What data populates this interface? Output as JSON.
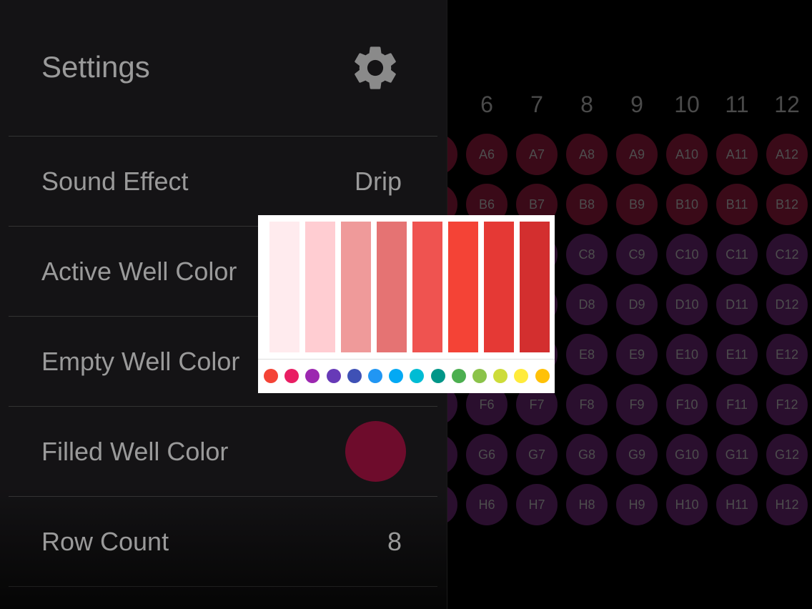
{
  "settings": {
    "title": "Settings",
    "gear_icon": "gear-icon",
    "rows": [
      {
        "label": "Sound Effect",
        "value": "Drip"
      },
      {
        "label": "Active Well Color"
      },
      {
        "label": "Empty Well Color"
      },
      {
        "label": "Filled Well Color",
        "color": "#6e0c2c"
      },
      {
        "label": "Row Count",
        "value": "8"
      }
    ]
  },
  "plate": {
    "columns": [
      "6",
      "7",
      "8",
      "9",
      "10",
      "11",
      "12"
    ],
    "rows": [
      "A",
      "B",
      "C",
      "D",
      "E",
      "F",
      "G",
      "H"
    ],
    "filled_color": "#3a0a18",
    "empty_color": "#2a0f2e"
  },
  "color_picker": {
    "shades": [
      "#ffebee",
      "#ffcdd2",
      "#ef9a9a",
      "#e57373",
      "#ef5350",
      "#f44336",
      "#e53935",
      "#d32f2f"
    ],
    "hues": [
      "#f44336",
      "#e91e63",
      "#9c27b0",
      "#673ab7",
      "#3f51b5",
      "#2196f3",
      "#03a9f4",
      "#00bcd4",
      "#009688",
      "#4caf50",
      "#8bc34a",
      "#cddc39",
      "#ffeb3b",
      "#ffc107"
    ]
  }
}
